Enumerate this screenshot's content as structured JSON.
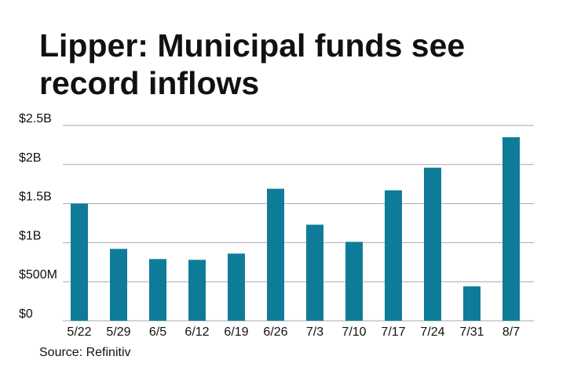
{
  "title": "Lipper: Municipal funds see record inflows",
  "source": "Source: Refinitiv",
  "colors": {
    "bar": "#0e7c99",
    "grid": "#a8a8a8",
    "text": "#111111"
  },
  "chart_data": {
    "type": "bar",
    "title": "Lipper: Municipal funds see record inflows",
    "categories": [
      "5/22",
      "5/29",
      "6/5",
      "6/12",
      "6/19",
      "6/26",
      "7/3",
      "7/10",
      "7/17",
      "7/24",
      "7/31",
      "8/7"
    ],
    "values": [
      1.5,
      0.92,
      0.79,
      0.78,
      0.86,
      1.69,
      1.23,
      1.01,
      1.67,
      1.96,
      0.44,
      2.35
    ],
    "value_unit": "billions USD",
    "ylim": [
      0,
      2.5
    ],
    "yticks": [
      0,
      0.5,
      1,
      1.5,
      2,
      2.5
    ],
    "ytick_labels": [
      "$0",
      "$500M",
      "$1B",
      "$1.5B",
      "$2B",
      "$2.5B"
    ],
    "xlabel": "",
    "ylabel": "",
    "grid": true,
    "legend": "none"
  }
}
